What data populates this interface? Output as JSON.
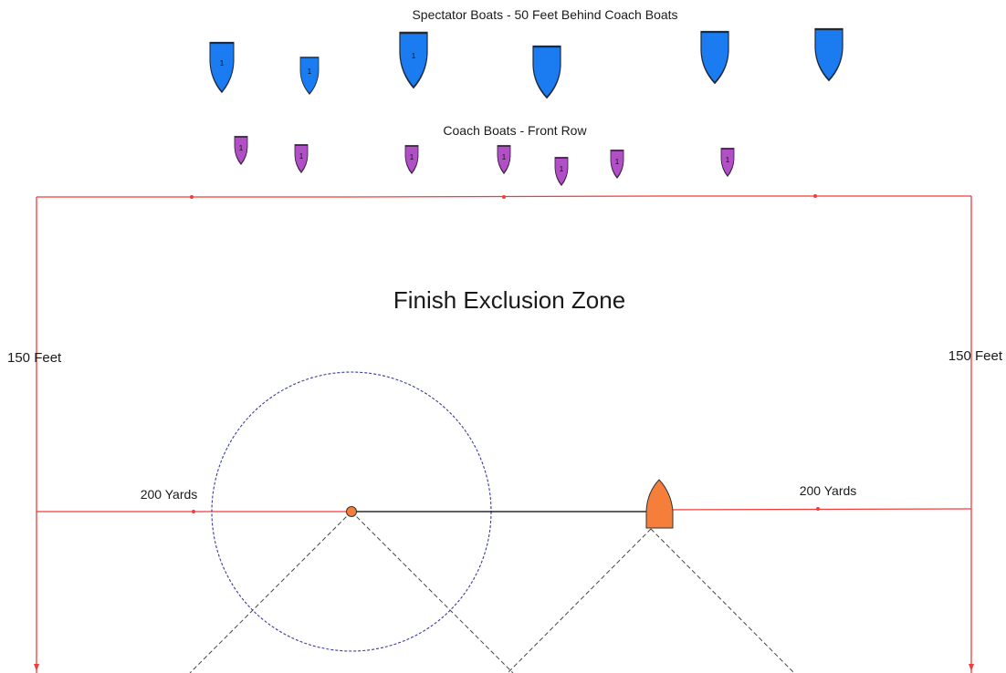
{
  "labels": {
    "spectator_row": "Spectator Boats - 50 Feet Behind Coach Boats",
    "coach_row": "Coach Boats - Front Row",
    "zone_title": "Finish Exclusion Zone",
    "left_depth": "150 Feet",
    "right_depth": "150 Feet",
    "left_width": "200 Yards",
    "right_width": "200 Yards"
  },
  "spectator_boats": [
    {
      "number": "1"
    },
    {
      "number": "1"
    },
    {
      "number": "1"
    },
    {
      "number": ""
    },
    {
      "number": ""
    },
    {
      "number": ""
    }
  ],
  "coach_boats": [
    {
      "number": "1"
    },
    {
      "number": "1"
    },
    {
      "number": "1"
    },
    {
      "number": "1"
    },
    {
      "number": "1"
    },
    {
      "number": "1"
    },
    {
      "number": "1"
    }
  ],
  "colors": {
    "spectator_boat": "#1a7cf0",
    "coach_boat": "#b04fc6",
    "finish_boat": "#f57f3a",
    "pin_buoy": "#f57f3a",
    "zone_boundary": "#f23c3c",
    "circle": "#3a3aa0",
    "finish_line": "#000000",
    "layline": "#444444"
  },
  "icons": {
    "spectator_boat": "boat-icon",
    "coach_boat": "boat-icon",
    "finish_boat": "committee-boat-icon",
    "pin": "buoy-icon"
  }
}
